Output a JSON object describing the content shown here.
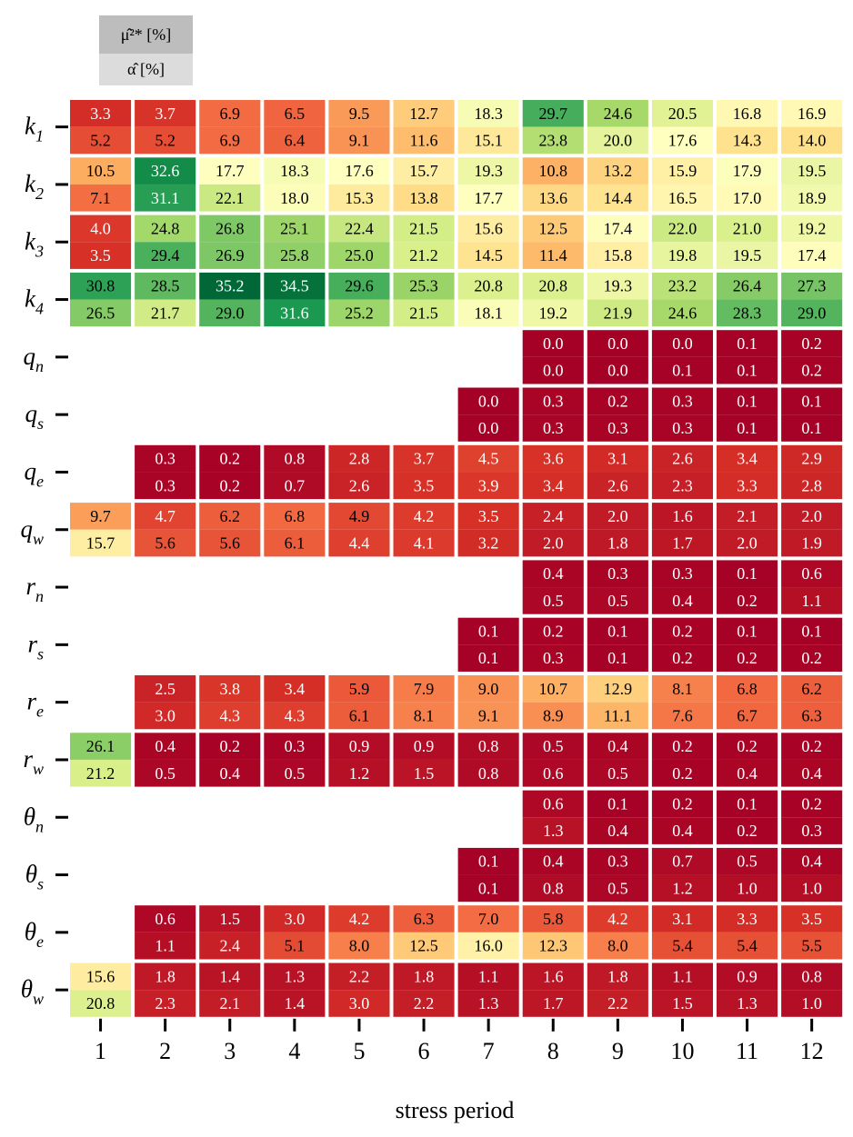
{
  "chart_data": {
    "type": "heatmap",
    "xlabel": "stress period",
    "x_ticks": [
      "1",
      "2",
      "3",
      "4",
      "5",
      "6",
      "7",
      "8",
      "9",
      "10",
      "11",
      "12"
    ],
    "legend": {
      "top_label": "μ̂²* [%]",
      "bottom_label": "α̂ [%]"
    },
    "row_labels": [
      {
        "base": "k",
        "sub": "1"
      },
      {
        "base": "k",
        "sub": "2"
      },
      {
        "base": "k",
        "sub": "3"
      },
      {
        "base": "k",
        "sub": "4"
      },
      {
        "base": "q",
        "sub": "n"
      },
      {
        "base": "q",
        "sub": "s"
      },
      {
        "base": "q",
        "sub": "e"
      },
      {
        "base": "q",
        "sub": "w"
      },
      {
        "base": "r",
        "sub": "n"
      },
      {
        "base": "r",
        "sub": "s"
      },
      {
        "base": "r",
        "sub": "e"
      },
      {
        "base": "r",
        "sub": "w"
      },
      {
        "base": "θ",
        "sub": "n"
      },
      {
        "base": "θ",
        "sub": "s"
      },
      {
        "base": "θ",
        "sub": "e"
      },
      {
        "base": "θ",
        "sub": "w"
      }
    ],
    "color_range": [
      0,
      35.2
    ],
    "mu": [
      [
        "3.3",
        "3.7",
        "6.9",
        "6.5",
        "9.5",
        "12.7",
        "18.3",
        "29.7",
        "24.6",
        "20.5",
        "16.8",
        "16.9"
      ],
      [
        "10.5",
        "32.6",
        "17.7",
        "18.3",
        "17.6",
        "15.7",
        "19.3",
        "10.8",
        "13.2",
        "15.9",
        "17.9",
        "19.5"
      ],
      [
        "4.0",
        "24.8",
        "26.8",
        "25.1",
        "22.4",
        "21.5",
        "15.6",
        "12.5",
        "17.4",
        "22.0",
        "21.0",
        "19.2"
      ],
      [
        "30.8",
        "28.5",
        "35.2",
        "34.5",
        "29.6",
        "25.3",
        "20.8",
        "20.8",
        "19.3",
        "23.2",
        "26.4",
        "27.3"
      ],
      [
        null,
        null,
        null,
        null,
        null,
        null,
        null,
        "0.0",
        "0.0",
        "0.0",
        "0.1",
        "0.2"
      ],
      [
        null,
        null,
        null,
        null,
        null,
        null,
        "0.0",
        "0.3",
        "0.2",
        "0.3",
        "0.1",
        "0.1"
      ],
      [
        null,
        "0.3",
        "0.2",
        "0.8",
        "2.8",
        "3.7",
        "4.5",
        "3.6",
        "3.1",
        "2.6",
        "3.4",
        "2.9"
      ],
      [
        "9.7",
        "4.7",
        "6.2",
        "6.8",
        "4.9",
        "4.2",
        "3.5",
        "2.4",
        "2.0",
        "1.6",
        "2.1",
        "2.0"
      ],
      [
        null,
        null,
        null,
        null,
        null,
        null,
        null,
        "0.4",
        "0.3",
        "0.3",
        "0.1",
        "0.6"
      ],
      [
        null,
        null,
        null,
        null,
        null,
        null,
        "0.1",
        "0.2",
        "0.1",
        "0.2",
        "0.1",
        "0.1"
      ],
      [
        null,
        "2.5",
        "3.8",
        "3.4",
        "5.9",
        "7.9",
        "9.0",
        "10.7",
        "12.9",
        "8.1",
        "6.8",
        "6.2"
      ],
      [
        "26.1",
        "0.4",
        "0.2",
        "0.3",
        "0.9",
        "0.9",
        "0.8",
        "0.5",
        "0.4",
        "0.2",
        "0.2",
        "0.2"
      ],
      [
        null,
        null,
        null,
        null,
        null,
        null,
        null,
        "0.6",
        "0.1",
        "0.2",
        "0.1",
        "0.2"
      ],
      [
        null,
        null,
        null,
        null,
        null,
        null,
        "0.1",
        "0.4",
        "0.3",
        "0.7",
        "0.5",
        "0.4"
      ],
      [
        null,
        "0.6",
        "1.5",
        "3.0",
        "4.2",
        "6.3",
        "7.0",
        "5.8",
        "4.2",
        "3.1",
        "3.3",
        "3.5"
      ],
      [
        "15.6",
        "1.8",
        "1.4",
        "1.3",
        "2.2",
        "1.8",
        "1.1",
        "1.6",
        "1.8",
        "1.1",
        "0.9",
        "0.8"
      ]
    ],
    "alpha": [
      [
        "5.2",
        "5.2",
        "6.9",
        "6.4",
        "9.1",
        "11.6",
        "15.1",
        "23.8",
        "20.0",
        "17.6",
        "14.3",
        "14.0"
      ],
      [
        "7.1",
        "31.1",
        "22.1",
        "18.0",
        "15.3",
        "13.8",
        "17.7",
        "13.6",
        "14.4",
        "16.5",
        "17.0",
        "18.9"
      ],
      [
        "3.5",
        "29.4",
        "26.9",
        "25.8",
        "25.0",
        "21.2",
        "14.5",
        "11.4",
        "15.8",
        "19.8",
        "19.5",
        "17.4"
      ],
      [
        "26.5",
        "21.7",
        "29.0",
        "31.6",
        "25.2",
        "21.5",
        "18.1",
        "19.2",
        "21.9",
        "24.6",
        "28.3",
        "29.0"
      ],
      [
        null,
        null,
        null,
        null,
        null,
        null,
        null,
        "0.0",
        "0.0",
        "0.1",
        "0.1",
        "0.2"
      ],
      [
        null,
        null,
        null,
        null,
        null,
        null,
        "0.0",
        "0.3",
        "0.3",
        "0.3",
        "0.1",
        "0.1"
      ],
      [
        null,
        "0.3",
        "0.2",
        "0.7",
        "2.6",
        "3.5",
        "3.9",
        "3.4",
        "2.6",
        "2.3",
        "3.3",
        "2.8"
      ],
      [
        "15.7",
        "5.6",
        "5.6",
        "6.1",
        "4.4",
        "4.1",
        "3.2",
        "2.0",
        "1.8",
        "1.7",
        "2.0",
        "1.9"
      ],
      [
        null,
        null,
        null,
        null,
        null,
        null,
        null,
        "0.5",
        "0.5",
        "0.4",
        "0.2",
        "1.1"
      ],
      [
        null,
        null,
        null,
        null,
        null,
        null,
        "0.1",
        "0.3",
        "0.1",
        "0.2",
        "0.2",
        "0.2"
      ],
      [
        null,
        "3.0",
        "4.3",
        "4.3",
        "6.1",
        "8.1",
        "9.1",
        "8.9",
        "11.1",
        "7.6",
        "6.7",
        "6.3"
      ],
      [
        "21.2",
        "0.5",
        "0.4",
        "0.5",
        "1.2",
        "1.5",
        "0.8",
        "0.6",
        "0.5",
        "0.2",
        "0.4",
        "0.4"
      ],
      [
        null,
        null,
        null,
        null,
        null,
        null,
        null,
        "1.3",
        "0.4",
        "0.4",
        "0.2",
        "0.3"
      ],
      [
        null,
        null,
        null,
        null,
        null,
        null,
        "0.1",
        "0.8",
        "0.5",
        "1.2",
        "1.0",
        "1.0"
      ],
      [
        null,
        "1.1",
        "2.4",
        "5.1",
        "8.0",
        "12.5",
        "16.0",
        "12.3",
        "8.0",
        "5.4",
        "5.4",
        "5.5"
      ],
      [
        "20.8",
        "2.3",
        "2.1",
        "1.4",
        "3.0",
        "2.2",
        "1.3",
        "1.7",
        "2.2",
        "1.5",
        "1.3",
        "1.0"
      ]
    ]
  }
}
